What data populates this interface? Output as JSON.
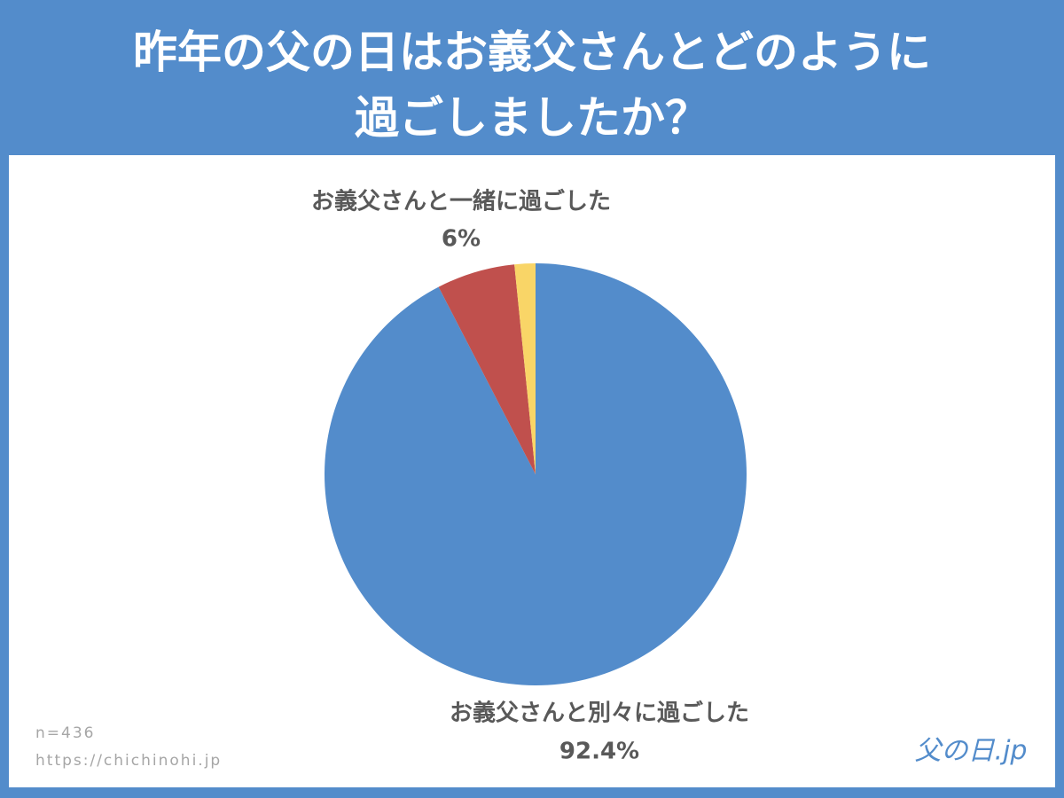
{
  "chart_data": {
    "type": "pie",
    "title": "昨年の父の日はお義父さんとどのように過ごしましたか？",
    "categories": [
      "お義父さんと別々に過ごした",
      "お義父さんと一緒に過ごした",
      null
    ],
    "values": [
      92.4,
      6,
      1.6
    ],
    "value_labels": [
      "92.4%",
      "6%",
      null
    ],
    "colors": [
      "#538ccb",
      "#c0504d",
      "#f9d567"
    ],
    "annotations": [
      "n=436",
      "https://chichinohi.jp"
    ],
    "logo": "父の日.jp"
  }
}
